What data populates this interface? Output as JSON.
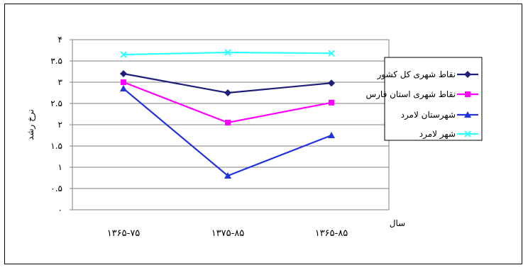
{
  "chart_data": {
    "type": "line",
    "title": "",
    "xlabel": "سال",
    "ylabel": "نرخ رشد",
    "categories": [
      "۱۳۶۵-۷۵",
      "۱۳۷۵-۸۵",
      "۱۳۶۵-۸۵"
    ],
    "ylim": [
      0,
      4
    ],
    "yticks": [
      0,
      0.5,
      1,
      1.5,
      2,
      2.5,
      3,
      3.5,
      4
    ],
    "ytick_labels": [
      "۰",
      "۰.۵",
      "۱",
      "۱.۵",
      "۲",
      "۲.۵",
      "۳",
      "۳.۵",
      "۴"
    ],
    "grid": "horizontal-major",
    "legend_position": "right",
    "series": [
      {
        "name": "نقاط شهری کل کشور",
        "values": [
          3.2,
          2.75,
          2.98
        ],
        "color": "#1f1f7a",
        "marker": "diamond"
      },
      {
        "name": "نقاط شهری استان فارس",
        "values": [
          3.0,
          2.05,
          2.52
        ],
        "color": "#ff00ff",
        "marker": "square"
      },
      {
        "name": "شهرستان لامرد",
        "values": [
          2.85,
          0.8,
          1.75
        ],
        "color": "#2233dd",
        "marker": "triangle"
      },
      {
        "name": "شهر لامرد",
        "values": [
          3.65,
          3.7,
          3.68
        ],
        "color": "#33ffff",
        "marker": "x"
      }
    ]
  }
}
